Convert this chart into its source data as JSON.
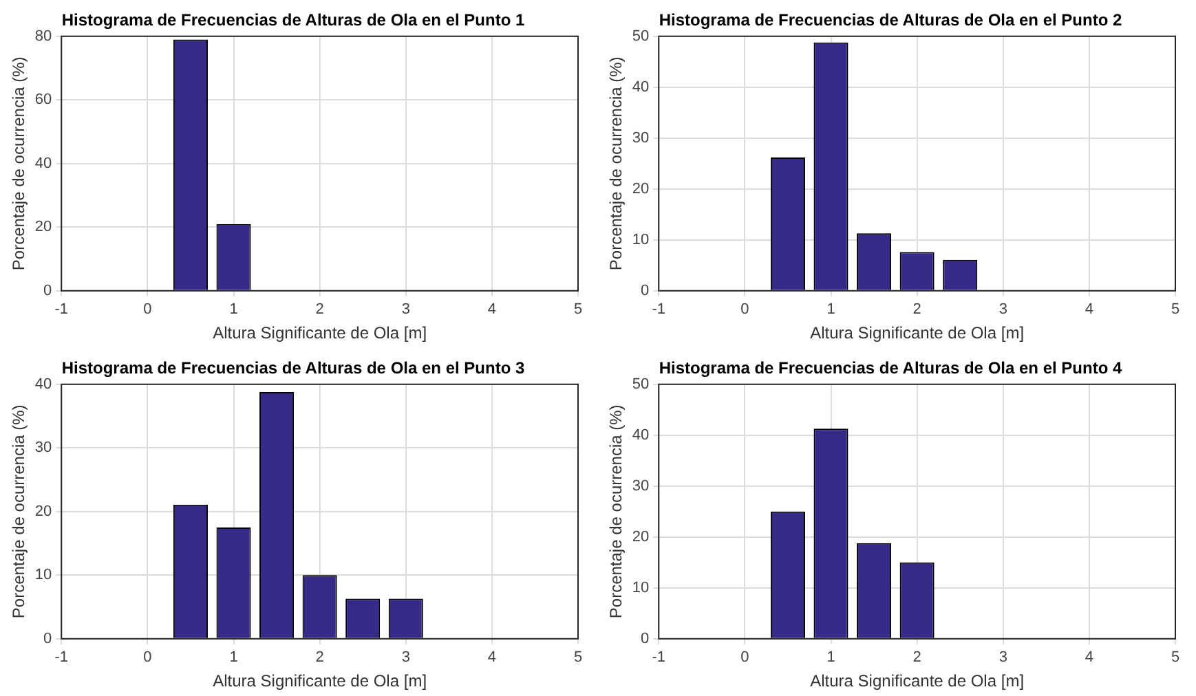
{
  "chart_data": [
    {
      "type": "bar",
      "title": "Histograma de Frecuencias de Alturas de Ola en el Punto 1",
      "xlabel": "Altura Significante de Ola [m]",
      "ylabel": "Porcentaje de ocurrencia (%)",
      "x": [
        0.5,
        1
      ],
      "values": [
        79,
        21
      ],
      "color": "#352a87",
      "xlim": [
        -1,
        5
      ],
      "xticks": [
        -1,
        0,
        1,
        2,
        3,
        4,
        5
      ],
      "ylim": [
        0,
        80
      ],
      "yticks": [
        0,
        20,
        40,
        60,
        80
      ],
      "grid": true
    },
    {
      "type": "bar",
      "title": "Histograma de Frecuencias de Alturas de Ola en el Punto 2",
      "xlabel": "Altura Significante de Ola [m]",
      "ylabel": "Porcentaje de ocurrencia (%)",
      "x": [
        0.5,
        1,
        1.5,
        2,
        2.5
      ],
      "values": [
        26.2,
        48.8,
        11.3,
        7.6,
        6.1
      ],
      "color": "#352a87",
      "xlim": [
        -1,
        5
      ],
      "xticks": [
        -1,
        0,
        1,
        2,
        3,
        4,
        5
      ],
      "ylim": [
        0,
        50
      ],
      "yticks": [
        0,
        10,
        20,
        30,
        40,
        50
      ],
      "grid": true
    },
    {
      "type": "bar",
      "title": "Histograma de Frecuencias de Alturas de Ola en el Punto 3",
      "xlabel": "Altura Significante de Ola [m]",
      "ylabel": "Porcentaje de ocurrencia (%)",
      "x": [
        0.5,
        1,
        1.5,
        2,
        2.5,
        3
      ],
      "values": [
        21.1,
        17.5,
        38.8,
        10,
        6.3,
        6.3
      ],
      "color": "#352a87",
      "xlim": [
        -1,
        5
      ],
      "xticks": [
        -1,
        0,
        1,
        2,
        3,
        4,
        5
      ],
      "ylim": [
        0,
        40
      ],
      "yticks": [
        0,
        10,
        20,
        30,
        40
      ],
      "grid": true
    },
    {
      "type": "bar",
      "title": "Histograma de Frecuencias de Alturas de Ola en el Punto 4",
      "xlabel": "Altura Significante de Ola [m]",
      "ylabel": "Porcentaje de ocurrencia (%)",
      "x": [
        0.5,
        1,
        1.5,
        2
      ],
      "values": [
        25,
        41.3,
        18.8,
        15
      ],
      "color": "#352a87",
      "xlim": [
        -1,
        5
      ],
      "xticks": [
        -1,
        0,
        1,
        2,
        3,
        4,
        5
      ],
      "ylim": [
        0,
        50
      ],
      "yticks": [
        0,
        10,
        20,
        30,
        40,
        50
      ],
      "grid": true
    }
  ]
}
